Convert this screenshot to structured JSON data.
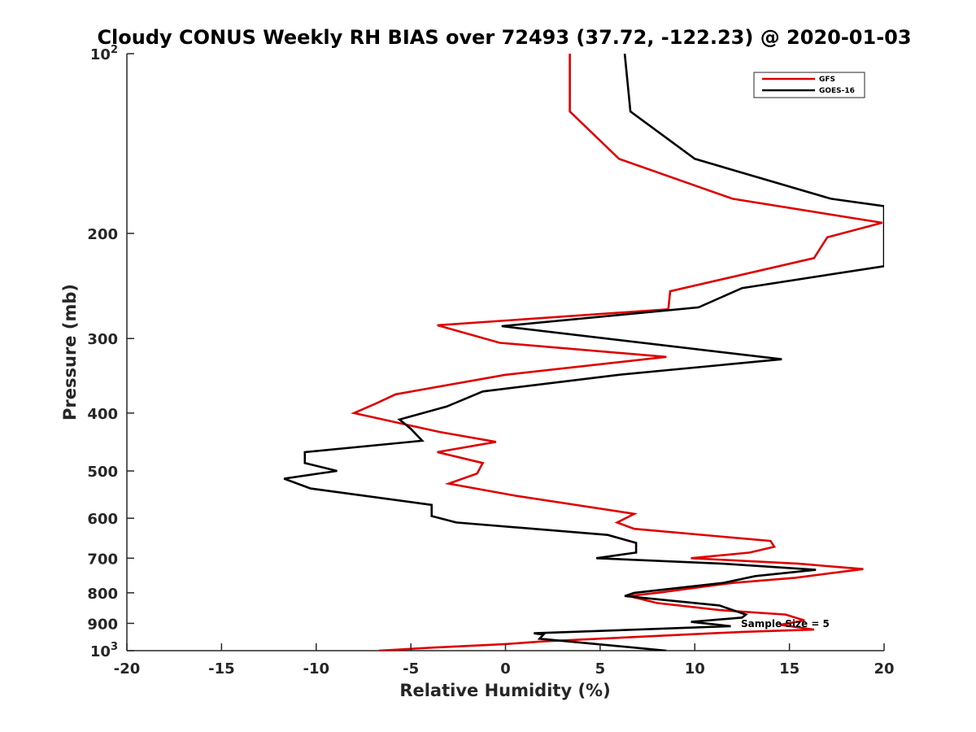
{
  "chart_data": {
    "type": "line",
    "title": "Cloudy CONUS Weekly RH BIAS over 72493 (37.72, -122.23) @ 2020-01-03",
    "xlabel": "Relative Humidity (%)",
    "ylabel": "Pressure (mb)",
    "xlim": [
      -20,
      20
    ],
    "ylim": [
      100,
      1000
    ],
    "y_scale": "log",
    "y_reversed": true,
    "x_ticks": [
      "-20",
      "-15",
      "-10",
      "-5",
      "0",
      "5",
      "10",
      "15",
      "20"
    ],
    "x_tick_values": [
      -20,
      -15,
      -10,
      -5,
      0,
      5,
      10,
      15,
      20
    ],
    "y_ticks": [
      {
        "value": 100,
        "base": "10",
        "exp": "2"
      },
      {
        "value": 200,
        "base": "200",
        "exp": ""
      },
      {
        "value": 300,
        "base": "300",
        "exp": ""
      },
      {
        "value": 400,
        "base": "400",
        "exp": ""
      },
      {
        "value": 500,
        "base": "500",
        "exp": ""
      },
      {
        "value": 600,
        "base": "600",
        "exp": ""
      },
      {
        "value": 700,
        "base": "700",
        "exp": ""
      },
      {
        "value": 800,
        "base": "800",
        "exp": ""
      },
      {
        "value": 900,
        "base": "900",
        "exp": ""
      },
      {
        "value": 1000,
        "base": "10",
        "exp": "3"
      }
    ],
    "grid": false,
    "legend_position": "top-right",
    "annotation": "Sample Size = 5",
    "series": [
      {
        "name": "GFS",
        "color": "#dd0000",
        "points": [
          [
            3.4,
            100
          ],
          [
            3.4,
            125
          ],
          [
            6.0,
            150
          ],
          [
            12.0,
            175
          ],
          [
            19.9,
            192
          ],
          [
            17.0,
            203
          ],
          [
            16.3,
            220
          ],
          [
            8.7,
            250
          ],
          [
            8.6,
            268
          ],
          [
            -3.6,
            285
          ],
          [
            -0.3,
            305
          ],
          [
            8.5,
            322
          ],
          [
            0.0,
            345
          ],
          [
            -5.8,
            372
          ],
          [
            -6.8,
            385
          ],
          [
            -8.0,
            400
          ],
          [
            -3.5,
            430
          ],
          [
            -0.5,
            447
          ],
          [
            -3.6,
            465
          ],
          [
            -1.2,
            485
          ],
          [
            -1.5,
            505
          ],
          [
            -3.0,
            525
          ],
          [
            0.5,
            550
          ],
          [
            6.8,
            590
          ],
          [
            5.9,
            610
          ],
          [
            6.8,
            625
          ],
          [
            14.0,
            655
          ],
          [
            14.2,
            670
          ],
          [
            12.9,
            685
          ],
          [
            9.8,
            700
          ],
          [
            15.5,
            715
          ],
          [
            18.9,
            730
          ],
          [
            15.3,
            755
          ],
          [
            12.0,
            770
          ],
          [
            8.0,
            800
          ],
          [
            6.5,
            810
          ],
          [
            8.0,
            832
          ],
          [
            11.3,
            855
          ],
          [
            14.8,
            870
          ],
          [
            15.8,
            890
          ],
          [
            14.5,
            905
          ],
          [
            16.3,
            922
          ],
          [
            12.5,
            930
          ],
          [
            2.0,
            965
          ],
          [
            0.0,
            975
          ],
          [
            -3.8,
            988
          ],
          [
            -6.7,
            1000
          ]
        ]
      },
      {
        "name": "GOES-16",
        "color": "#000000",
        "points": [
          [
            6.3,
            100
          ],
          [
            6.6,
            125
          ],
          [
            10.0,
            150
          ],
          [
            17.2,
            175
          ],
          [
            20.0,
            180
          ],
          [
            20.0,
            227
          ],
          [
            12.5,
            247
          ],
          [
            10.2,
            266
          ],
          [
            -0.2,
            286
          ],
          [
            14.6,
            325
          ],
          [
            6.0,
            345
          ],
          [
            -1.2,
            368
          ],
          [
            -3.1,
            390
          ],
          [
            -5.6,
            410
          ],
          [
            -5.0,
            425
          ],
          [
            -4.4,
            445
          ],
          [
            -10.6,
            465
          ],
          [
            -10.6,
            485
          ],
          [
            -8.9,
            500
          ],
          [
            -11.7,
            515
          ],
          [
            -10.3,
            535
          ],
          [
            -3.9,
            570
          ],
          [
            -3.9,
            595
          ],
          [
            -2.6,
            610
          ],
          [
            5.4,
            640
          ],
          [
            6.9,
            660
          ],
          [
            6.9,
            685
          ],
          [
            4.8,
            700
          ],
          [
            11.5,
            715
          ],
          [
            16.4,
            732
          ],
          [
            13.2,
            750
          ],
          [
            11.5,
            770
          ],
          [
            6.8,
            800
          ],
          [
            6.3,
            810
          ],
          [
            11.3,
            840
          ],
          [
            12.7,
            870
          ],
          [
            12.5,
            880
          ],
          [
            9.8,
            895
          ],
          [
            11.9,
            910
          ],
          [
            1.5,
            935
          ],
          [
            2.0,
            940
          ],
          [
            1.8,
            955
          ],
          [
            8.5,
            1000
          ]
        ]
      }
    ]
  }
}
